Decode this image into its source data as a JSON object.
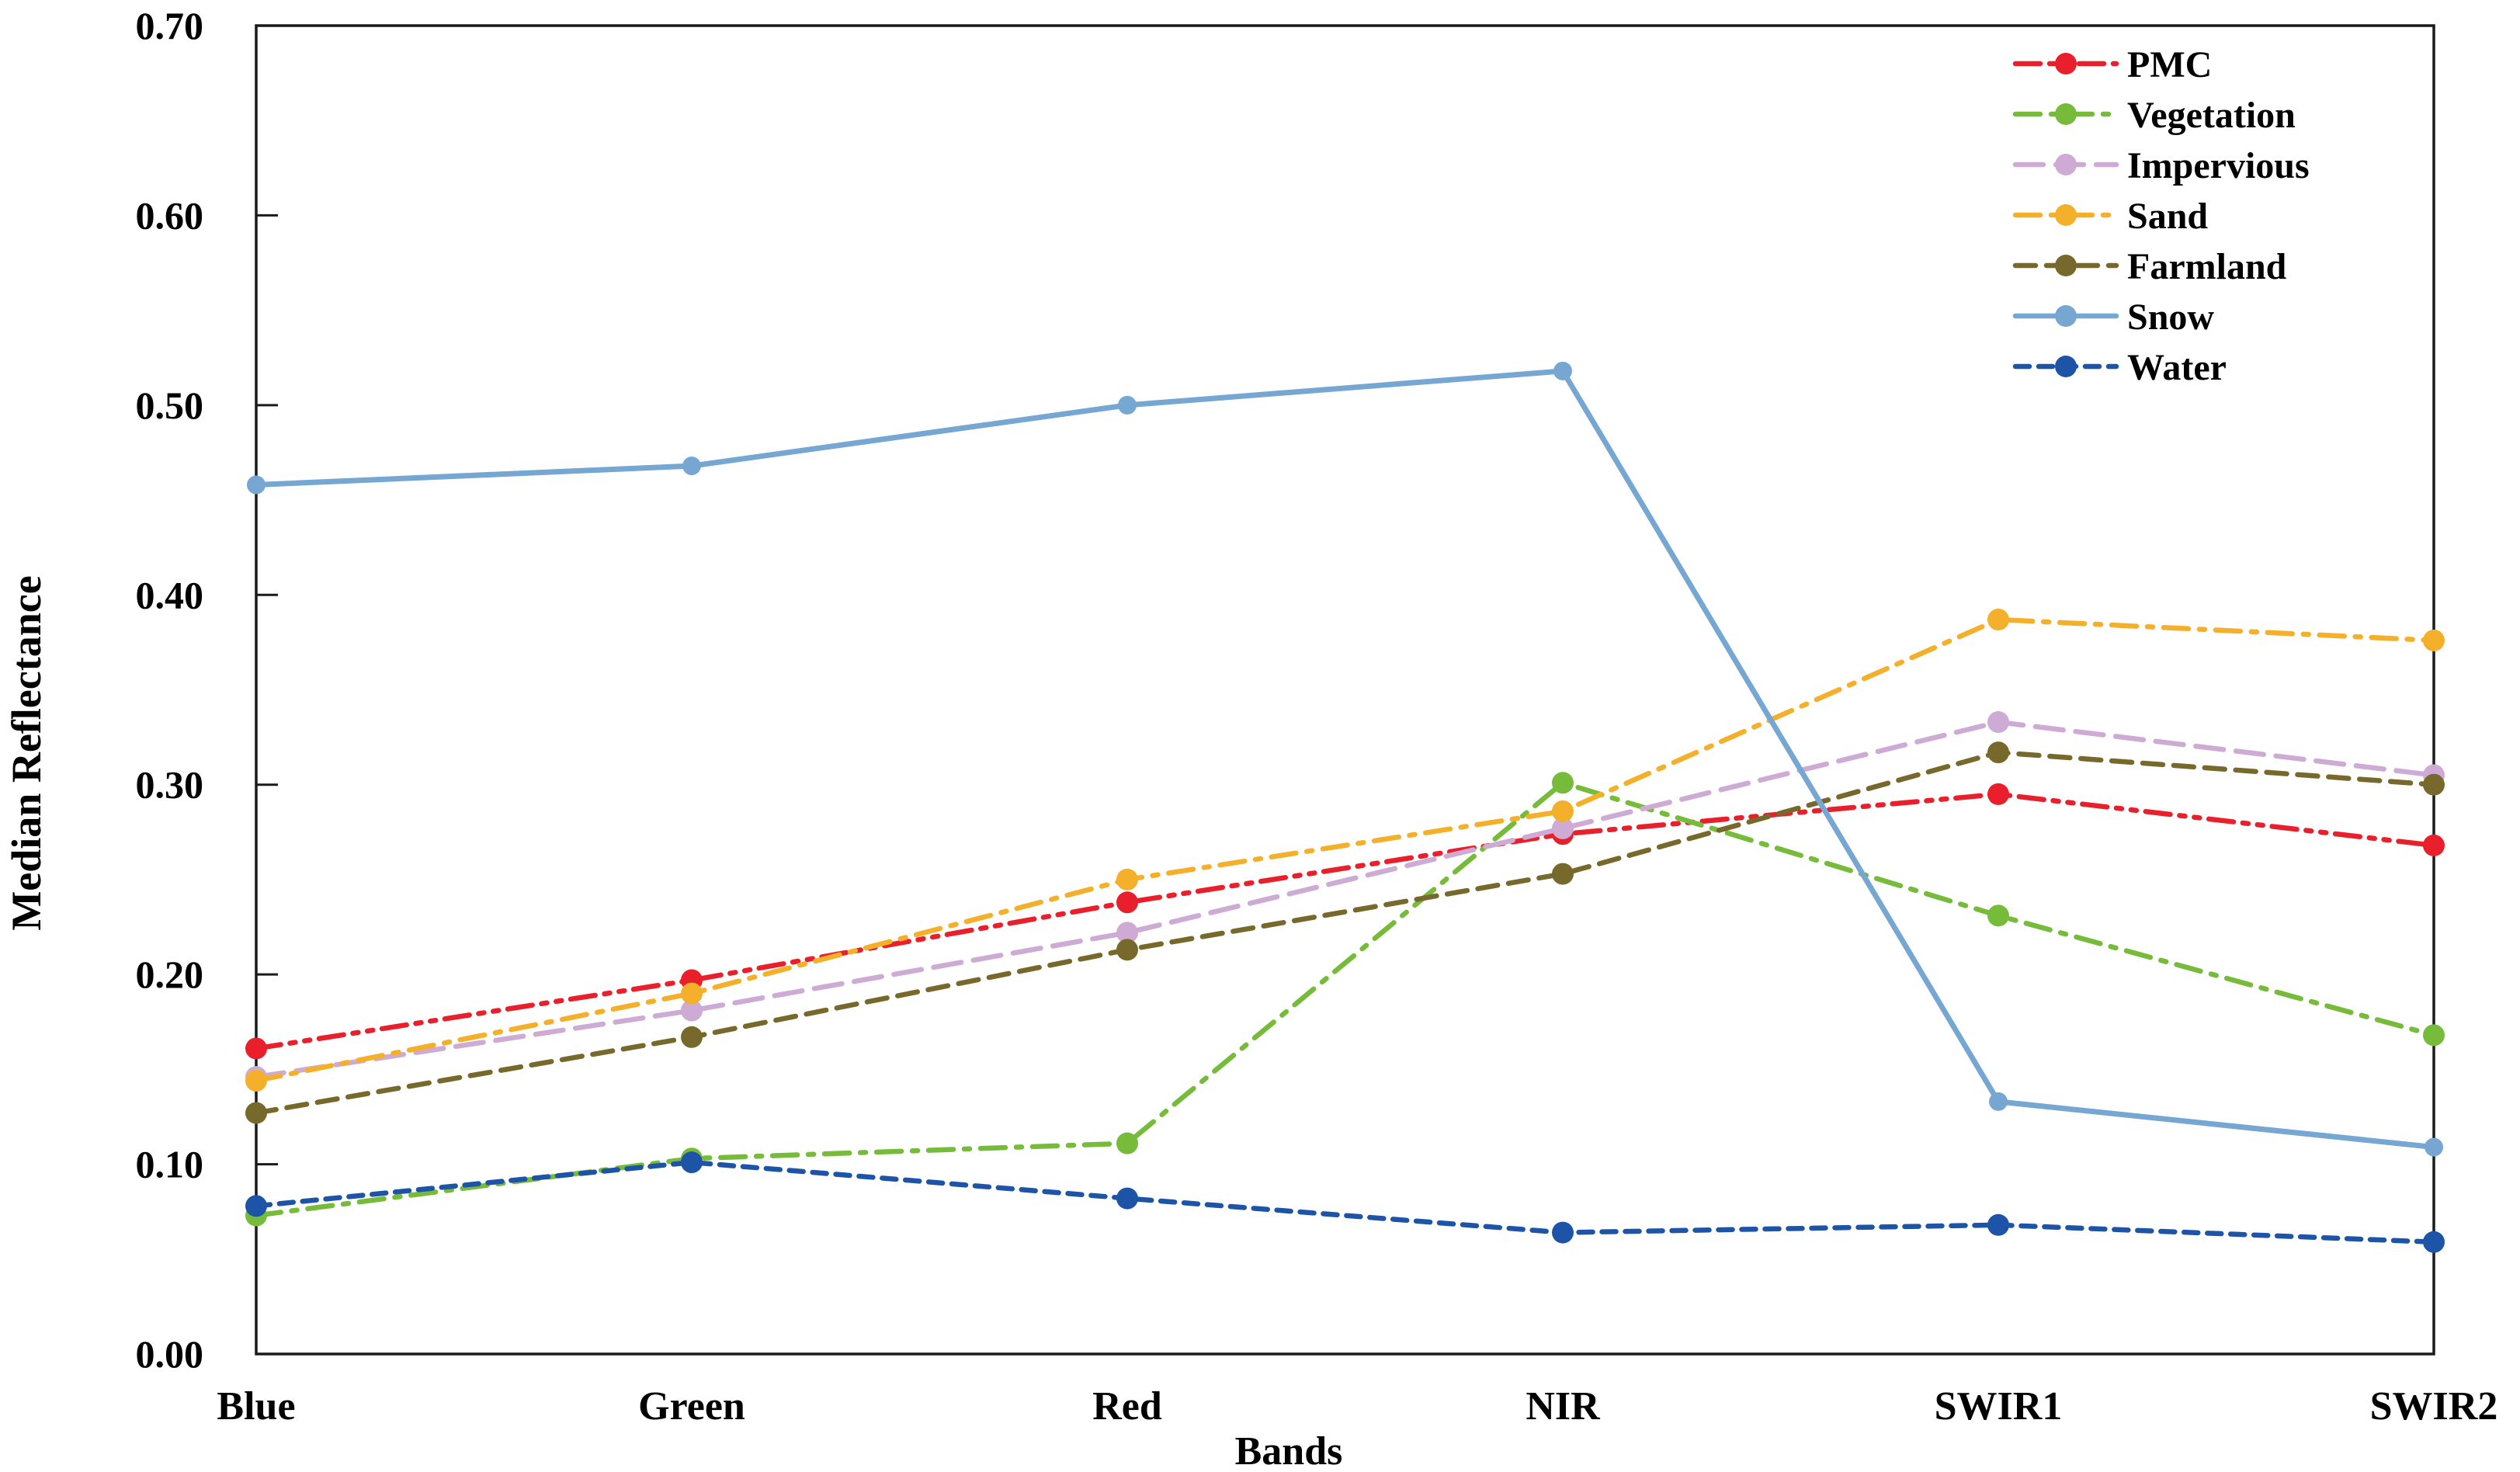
{
  "chart_data": {
    "type": "line",
    "title": "",
    "xlabel": "Bands",
    "ylabel": "Median Reflectance",
    "categories": [
      "Blue",
      "Green",
      "Red",
      "NIR",
      "SWIR1",
      "SWIR2"
    ],
    "series": [
      {
        "name": "PMC",
        "color": "#E9202C",
        "line_style": "dash-dot-dot",
        "values": [
          0.161,
          0.197,
          0.238,
          0.274,
          0.295,
          0.268
        ]
      },
      {
        "name": "Vegetation",
        "color": "#76BB3A",
        "line_style": "dash-dot",
        "values": [
          0.073,
          0.103,
          0.111,
          0.301,
          0.231,
          0.168
        ]
      },
      {
        "name": "Impervious",
        "color": "#CEABD5",
        "line_style": "long-dash",
        "values": [
          0.146,
          0.181,
          0.222,
          0.277,
          0.333,
          0.305
        ]
      },
      {
        "name": "Sand",
        "color": "#F4B02A",
        "line_style": "dash-dot",
        "values": [
          0.144,
          0.19,
          0.25,
          0.286,
          0.387,
          0.376
        ]
      },
      {
        "name": "Farmland",
        "color": "#77682B",
        "line_style": "dash",
        "values": [
          0.127,
          0.167,
          0.213,
          0.253,
          0.317,
          0.3
        ]
      },
      {
        "name": "Snow",
        "color": "#76A6D2",
        "line_style": "solid",
        "values": [
          0.458,
          0.468,
          0.5,
          0.518,
          0.133,
          0.109
        ]
      },
      {
        "name": "Water",
        "color": "#1D54A7",
        "line_style": "short-dash",
        "values": [
          0.078,
          0.101,
          0.082,
          0.064,
          0.068,
          0.059
        ]
      }
    ],
    "ylim": [
      0.0,
      0.7
    ],
    "ytick_step": 0.1,
    "ytick_labels": [
      "0.00",
      "0.10",
      "0.20",
      "0.30",
      "0.40",
      "0.50",
      "0.60",
      "0.70"
    ],
    "legend_position": "top-right",
    "grid": false,
    "frame_color": "#1a1a1a",
    "marker": "circle"
  }
}
